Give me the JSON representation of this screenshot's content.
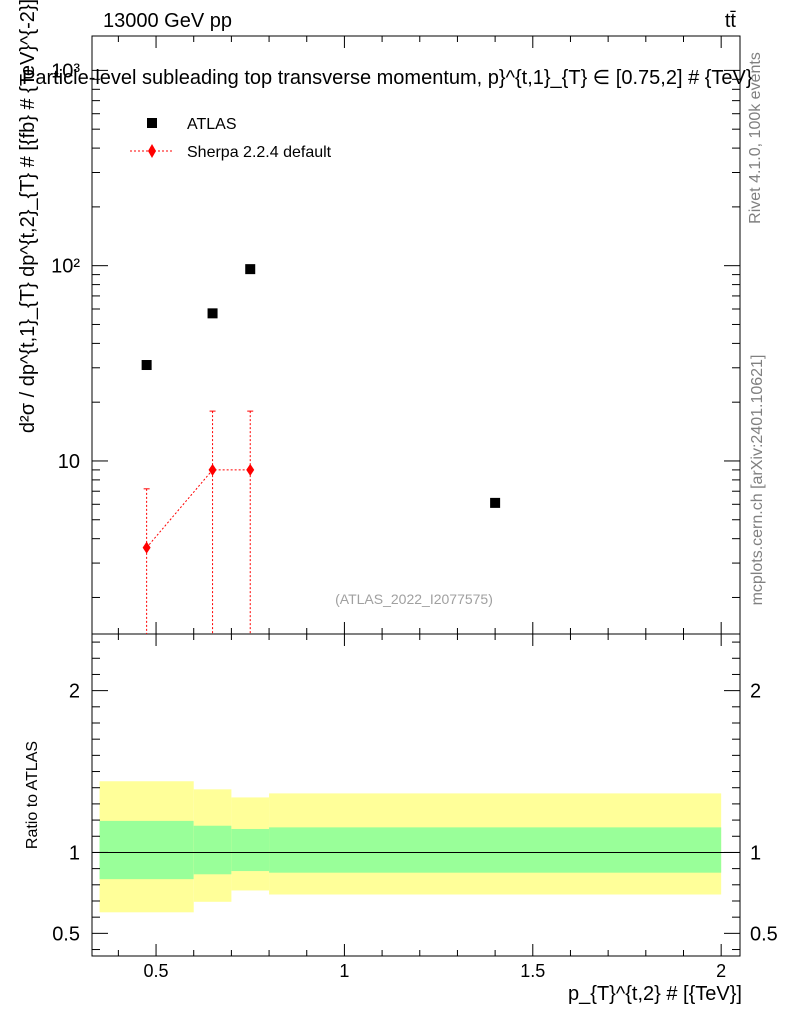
{
  "header": {
    "left": "13000 GeV pp",
    "right": "tt̄",
    "title": "Particle-level subleading top transverse momentum, p}^{t,1}_{T} ∈ [0.75,2] # {TeV}"
  },
  "side_labels": {
    "rivet": "Rivet 4.1.0,  100k events",
    "mcplots": "mcplots.cern.ch [arXiv:2401.10621]"
  },
  "watermark": "(ATLAS_2022_I2077575)",
  "legend": {
    "atlas": "ATLAS",
    "sherpa": "Sherpa 2.2.4 default"
  },
  "colors": {
    "data": "#000000",
    "mc": "#ff0000",
    "band_inner": "#99ff99",
    "band_outer": "#ffff99"
  },
  "chart_data": [
    {
      "type": "scatter",
      "panel": "main",
      "scale": "log",
      "xlabel": "p_{T}^{t,2} # [{TeV}]",
      "ylabel": "d²σ / dp^{t,1}_{T} dp^{t,2}_{T} # [{fb} # {TeV}^{-2}]",
      "xlim": [
        0.33,
        2.05
      ],
      "ylim": [
        1.3,
        1500
      ],
      "y_tick_labels": [
        "10",
        "10²",
        "10³"
      ],
      "series": [
        {
          "name": "ATLAS",
          "x": [
            0.475,
            0.65,
            0.75,
            1.4
          ],
          "y": [
            31,
            57,
            96,
            6.1
          ]
        },
        {
          "name": "Sherpa 2.2.4 default",
          "x": [
            0.475,
            0.65,
            0.75
          ],
          "y": [
            3.6,
            9.0,
            9.0
          ],
          "y_up": [
            7.2,
            18.0,
            18.0
          ],
          "y_down": [
            0.0,
            0.0,
            0.0
          ]
        }
      ]
    },
    {
      "type": "area",
      "panel": "ratio",
      "ylabel": "Ratio to ATLAS",
      "xlim": [
        0.33,
        2.05
      ],
      "ylim": [
        0.36,
        2.35
      ],
      "x_ticks": [
        0.5,
        1,
        1.5,
        2
      ],
      "x_tick_labels": [
        "0.5",
        "1",
        "1.5",
        "2"
      ],
      "y_ticks": [
        0.5,
        1,
        2
      ],
      "y_tick_labels": [
        "0.5",
        "1",
        "2"
      ],
      "bins": [
        0.35,
        0.6,
        0.7,
        0.8,
        2.0
      ],
      "inner_band_low": [
        0.835,
        0.865,
        0.885,
        0.875
      ],
      "inner_band_high": [
        1.195,
        1.165,
        1.145,
        1.155
      ],
      "outer_band_low": [
        0.63,
        0.695,
        0.765,
        0.74
      ],
      "outer_band_high": [
        1.44,
        1.39,
        1.34,
        1.365
      ],
      "reference_line": 1
    }
  ]
}
